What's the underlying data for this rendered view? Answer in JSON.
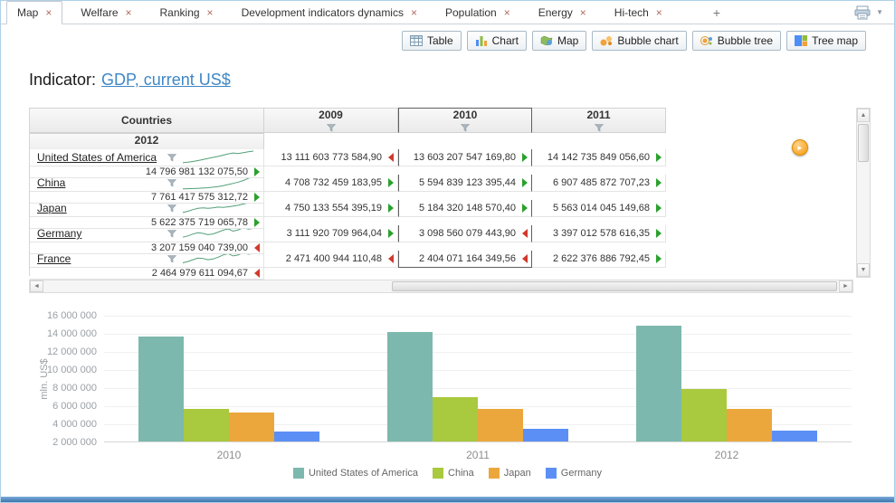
{
  "tab_bar": {
    "tabs": [
      {
        "label": "Map",
        "active": true
      },
      {
        "label": "Welfare",
        "active": false
      },
      {
        "label": "Ranking",
        "active": false
      },
      {
        "label": "Development indicators dynamics",
        "active": false
      },
      {
        "label": "Population",
        "active": false
      },
      {
        "label": "Energy",
        "active": false
      },
      {
        "label": "Hi-tech",
        "active": false
      }
    ],
    "add_button": "+",
    "close_glyph": "×",
    "print_caret": "▼"
  },
  "toolbar": {
    "buttons": [
      {
        "label": "Table",
        "icon": "table-icon"
      },
      {
        "label": "Chart",
        "icon": "chart-icon"
      },
      {
        "label": "Map",
        "icon": "map-icon"
      },
      {
        "label": "Bubble chart",
        "icon": "bubble-chart-icon"
      },
      {
        "label": "Bubble tree",
        "icon": "bubble-tree-icon"
      },
      {
        "label": "Tree map",
        "icon": "tree-map-icon"
      }
    ]
  },
  "indicator": {
    "label": "Indicator:",
    "link": "GDP, current US$"
  },
  "scrollbars": {
    "up": "▲",
    "down": "▼",
    "left": "◄",
    "right": "►"
  },
  "table": {
    "countries_header": "Countries",
    "years": [
      "2009",
      "2010",
      "2011",
      "2012"
    ],
    "selected_year_index": 1,
    "expand_glyph": "►",
    "rows": [
      {
        "country": "United States of America",
        "sparkline": [
          0.08,
          0.12,
          0.18,
          0.25,
          0.33,
          0.42,
          0.5,
          0.58,
          0.68,
          0.78,
          0.85,
          0.8,
          0.88,
          0.95,
          1.0
        ],
        "cells": [
          {
            "value": "13 111 603 773 584,90",
            "trend": "down"
          },
          {
            "value": "13 603 207 547 169,80",
            "trend": "up"
          },
          {
            "value": "14 142 735 849 056,60",
            "trend": "up"
          },
          {
            "value": "14 796 981 132 075,50",
            "trend": "up"
          }
        ]
      },
      {
        "country": "China",
        "sparkline": [
          0.02,
          0.03,
          0.04,
          0.06,
          0.08,
          0.11,
          0.15,
          0.2,
          0.27,
          0.36,
          0.45,
          0.55,
          0.68,
          0.84,
          1.0
        ],
        "cells": [
          {
            "value": "4 708 732 459 183,95",
            "trend": "up"
          },
          {
            "value": "5 594 839 123 395,44",
            "trend": "up"
          },
          {
            "value": "6 907 485 872 707,23",
            "trend": "up"
          },
          {
            "value": "7 761 417 575 312,72",
            "trend": "up"
          }
        ]
      },
      {
        "country": "Japan",
        "sparkline": [
          0.15,
          0.25,
          0.38,
          0.48,
          0.52,
          0.48,
          0.52,
          0.58,
          0.55,
          0.6,
          0.66,
          0.72,
          0.82,
          0.92,
          1.0
        ],
        "cells": [
          {
            "value": "4 750 133 554 395,19",
            "trend": "up"
          },
          {
            "value": "5 184 320 148 570,40",
            "trend": "up"
          },
          {
            "value": "5 563 014 045 149,68",
            "trend": "up"
          },
          {
            "value": "5 622 375 719 065,78",
            "trend": "up"
          }
        ]
      },
      {
        "country": "Germany",
        "sparkline": [
          0.2,
          0.3,
          0.45,
          0.55,
          0.5,
          0.4,
          0.46,
          0.6,
          0.76,
          0.86,
          0.68,
          0.78,
          0.96,
          0.84,
          0.9
        ],
        "cells": [
          {
            "value": "3 111 920 709 964,04",
            "trend": "up"
          },
          {
            "value": "3 098 560 079 443,90",
            "trend": "down"
          },
          {
            "value": "3 397 012 578 616,35",
            "trend": "up"
          },
          {
            "value": "3 207 159 040 739,00",
            "trend": "down"
          }
        ]
      },
      {
        "country": "France",
        "sparkline": [
          0.18,
          0.28,
          0.42,
          0.55,
          0.52,
          0.42,
          0.48,
          0.62,
          0.8,
          0.9,
          0.72,
          0.8,
          1.0,
          0.86,
          0.92
        ],
        "cells": [
          {
            "value": "2 471 400 944 110,48",
            "trend": "down"
          },
          {
            "value": "2 404 071 164 349,56",
            "trend": "down"
          },
          {
            "value": "2 622 376 886 792,45",
            "trend": "up"
          },
          {
            "value": "2 464 979 611 094,67",
            "trend": "down"
          }
        ]
      }
    ]
  },
  "chart_data": {
    "type": "bar",
    "title": "",
    "xlabel": "",
    "ylabel": "mln. US$",
    "categories": [
      "2010",
      "2011",
      "2012"
    ],
    "series": [
      {
        "name": "United States of America",
        "color": "#7db8ae",
        "values": [
          13603208,
          14142736,
          14796981
        ]
      },
      {
        "name": "China",
        "color": "#a9c93e",
        "values": [
          5594839,
          6907486,
          7761418
        ]
      },
      {
        "name": "Japan",
        "color": "#eca73c",
        "values": [
          5184320,
          5563014,
          5622376
        ]
      },
      {
        "name": "Germany",
        "color": "#5b8ff5",
        "values": [
          3098560,
          3397013,
          3207159
        ]
      }
    ],
    "ylim": [
      2000000,
      16000000
    ],
    "yticks": [
      "16 000 000",
      "14 000 000",
      "12 000 000",
      "10 000 000",
      "8 000 000",
      "6 000 000",
      "4 000 000",
      "2 000 000"
    ],
    "grid": true,
    "legend_position": "bottom"
  }
}
